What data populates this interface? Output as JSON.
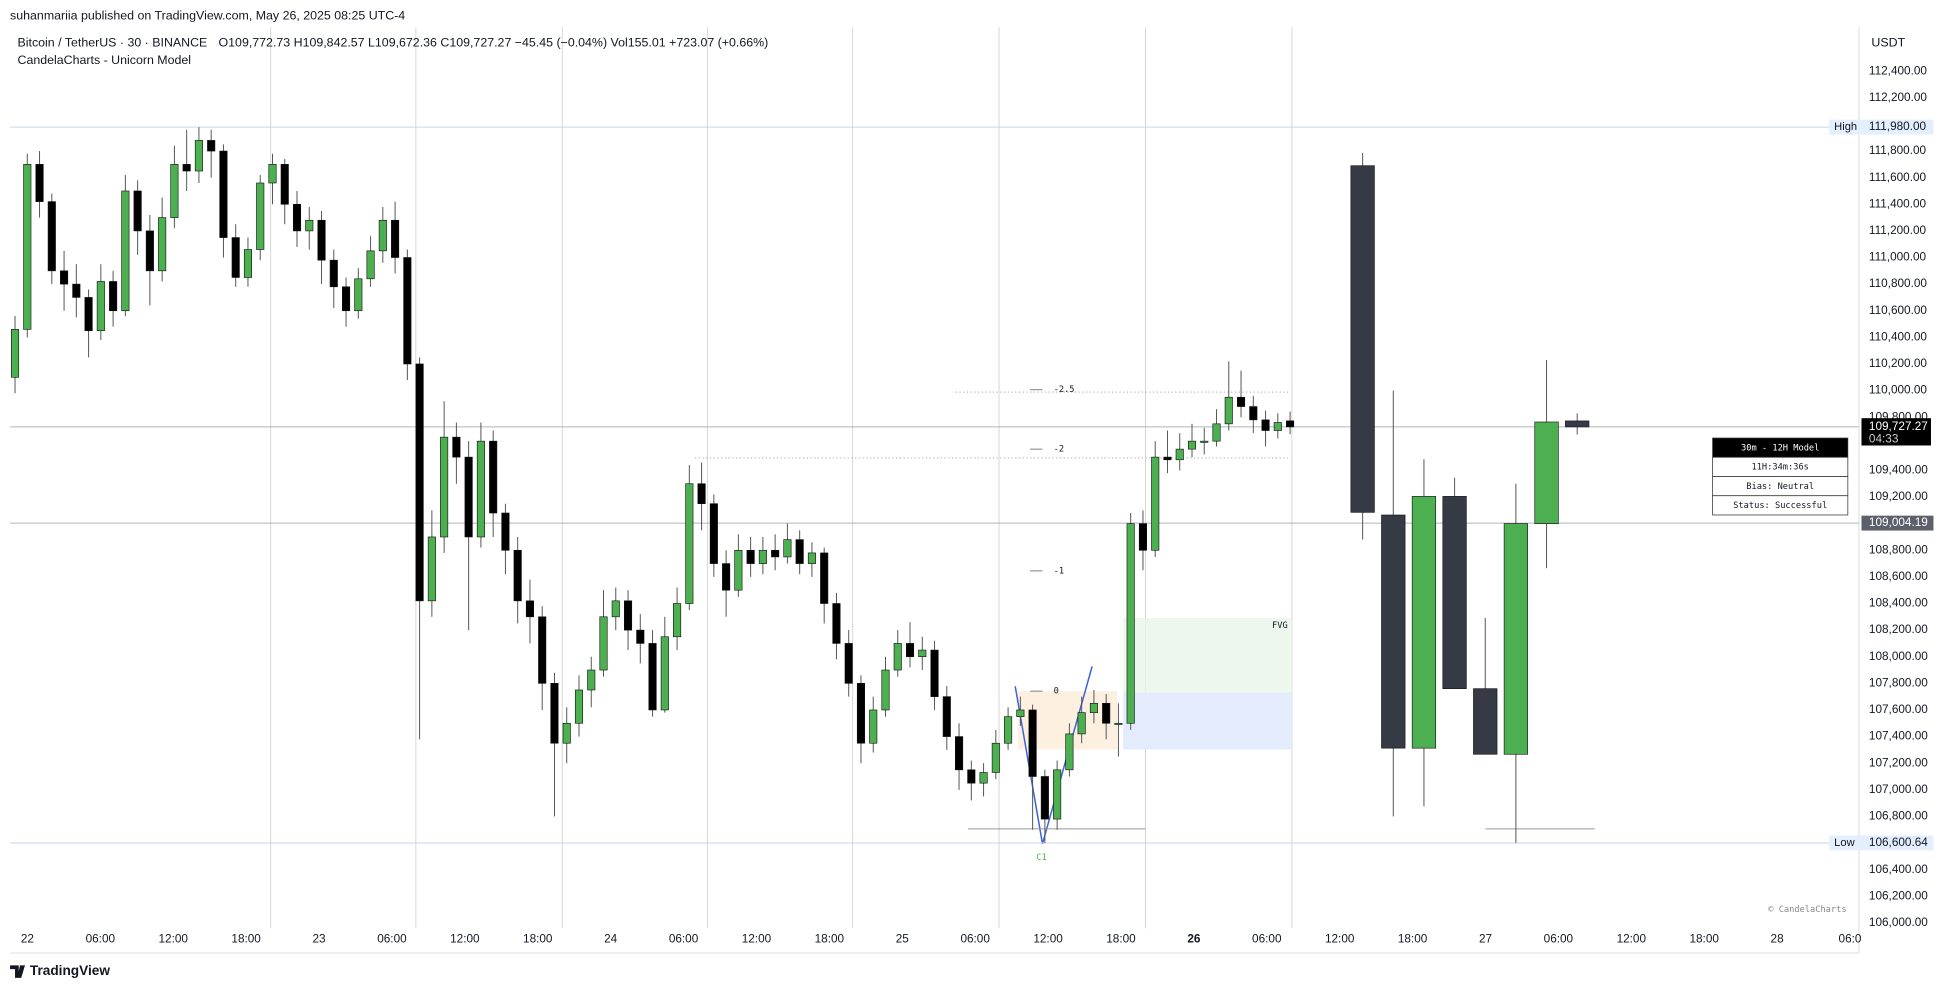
{
  "header": {
    "publisher": "suhanmariia published on TradingView.com, May 26, 2025 08:25 UTC-4",
    "brand": "TradingView"
  },
  "chart_data": {
    "type": "candlestick",
    "title": "Bitcoin / TetherUS · 30 · BINANCE",
    "ohlc_text": "O109,772.73  H109,842.57  L109,672.36  C109,727.27  −45.45 (−0.04%)  Vol155.01  +723.07 (+0.66%)",
    "indicator": "CandelaCharts - Unicorn Model",
    "currency": "USDT",
    "watermark": "© CandelaCharts",
    "bull_color": "#4caf50",
    "bear_color": "#000000",
    "htf_bear_color": "#363a45",
    "ylim": [
      105960,
      112730
    ],
    "yticks": [
      {
        "value": 112400,
        "label": "112,400.00"
      },
      {
        "value": 112200,
        "label": "112,200.00"
      },
      {
        "value": 111800,
        "label": "111,800.00"
      },
      {
        "value": 111600,
        "label": "111,600.00"
      },
      {
        "value": 111400,
        "label": "111,400.00"
      },
      {
        "value": 111200,
        "label": "111,200.00"
      },
      {
        "value": 111000,
        "label": "111,000.00"
      },
      {
        "value": 110800,
        "label": "110,800.00"
      },
      {
        "value": 110600,
        "label": "110,600.00"
      },
      {
        "value": 110400,
        "label": "110,400.00"
      },
      {
        "value": 110200,
        "label": "110,200.00"
      },
      {
        "value": 110000,
        "label": "110,000.00"
      },
      {
        "value": 109800,
        "label": "109,800.00"
      },
      {
        "value": 109400,
        "label": "109,400.00"
      },
      {
        "value": 109200,
        "label": "109,200.00"
      },
      {
        "value": 108800,
        "label": "108,800.00"
      },
      {
        "value": 108600,
        "label": "108,600.00"
      },
      {
        "value": 108400,
        "label": "108,400.00"
      },
      {
        "value": 108200,
        "label": "108,200.00"
      },
      {
        "value": 108000,
        "label": "108,000.00"
      },
      {
        "value": 107800,
        "label": "107,800.00"
      },
      {
        "value": 107600,
        "label": "107,600.00"
      },
      {
        "value": 107400,
        "label": "107,400.00"
      },
      {
        "value": 107200,
        "label": "107,200.00"
      },
      {
        "value": 107000,
        "label": "107,000.00"
      },
      {
        "value": 106800,
        "label": "106,800.00"
      },
      {
        "value": 106400,
        "label": "106,400.00"
      },
      {
        "value": 106200,
        "label": "106,200.00"
      },
      {
        "value": 106000,
        "label": "106,000.00"
      }
    ],
    "x_labels": [
      "22",
      "06:00",
      "12:00",
      "18:00",
      "23",
      "06:00",
      "12:00",
      "18:00",
      "24",
      "06:00",
      "12:00",
      "18:00",
      "25",
      "06:00",
      "12:00",
      "18:00",
      "26",
      "06:00",
      "12:00",
      "18:00",
      "27",
      "06:00",
      "12:00",
      "18:00",
      "28",
      "06:0"
    ],
    "open": [
      110100,
      110460,
      111700,
      111420,
      110900,
      110800,
      110700,
      110450,
      110820,
      110600,
      111500,
      111200,
      110900,
      111300,
      111700,
      111650,
      111880,
      111800,
      111150,
      110850,
      111060,
      111560,
      111700,
      111400,
      111200,
      111280,
      110980,
      110780,
      110600,
      110840,
      111050,
      111280,
      111000,
      110200,
      108420,
      108900,
      109650,
      109500,
      108900,
      109620,
      109080,
      108800,
      108420,
      108300,
      107800,
      107350,
      107500,
      107750,
      107900,
      108300,
      108420,
      108200,
      108100,
      107600,
      108150,
      108400,
      109300,
      109150,
      108700,
      108500,
      108800,
      108700,
      108800,
      108750,
      108880,
      108700,
      108780,
      108400,
      108100,
      107800,
      107350,
      107600,
      107900,
      108100,
      108000,
      108050,
      107700,
      107400,
      107150,
      107050,
      107130,
      107350,
      107550,
      107600,
      107100,
      106780,
      107150,
      107420,
      107580,
      107650,
      107500,
      107500,
      109000,
      108800,
      109500,
      109480,
      109560,
      109620,
      109620,
      109750,
      109950,
      109880,
      109780,
      109700,
      109772.73
    ],
    "high": [
      110560,
      111780,
      111800,
      111480,
      111050,
      110950,
      110760,
      110950,
      110900,
      111620,
      111580,
      111320,
      111450,
      111840,
      111960,
      111980,
      111960,
      111850,
      111250,
      111150,
      111620,
      111780,
      111740,
      111500,
      111380,
      111350,
      111060,
      110850,
      110920,
      111160,
      111380,
      111420,
      111060,
      110250,
      109100,
      109920,
      109760,
      109620,
      109760,
      109700,
      109150,
      108900,
      108580,
      108380,
      107880,
      107620,
      107860,
      108000,
      108500,
      108520,
      108500,
      108320,
      108200,
      108300,
      108520,
      109440,
      109460,
      109220,
      108800,
      108920,
      108900,
      108900,
      108920,
      109000,
      108950,
      108860,
      108820,
      108480,
      108200,
      107860,
      107700,
      108000,
      108200,
      108260,
      108150,
      108120,
      107780,
      107500,
      107220,
      107200,
      107450,
      107620,
      107700,
      107640,
      107150,
      107220,
      107500,
      107700,
      107750,
      107720,
      107650,
      109080,
      109100,
      109620,
      109700,
      109680,
      109750,
      109720,
      109860,
      110220,
      110150,
      109960,
      109850,
      109830,
      109842.57
    ],
    "low": [
      109980,
      110400,
      111300,
      110800,
      110600,
      110550,
      110250,
      110380,
      110480,
      110560,
      111020,
      110640,
      110820,
      111220,
      111500,
      111560,
      111600,
      111000,
      110780,
      110780,
      110980,
      111400,
      111250,
      111080,
      111060,
      110800,
      110620,
      110480,
      110540,
      110780,
      110960,
      110880,
      110080,
      107380,
      108300,
      108780,
      109300,
      108200,
      108820,
      108900,
      108620,
      108250,
      108100,
      107600,
      106800,
      107200,
      107400,
      107620,
      107850,
      108200,
      108050,
      107950,
      107550,
      107580,
      108050,
      108350,
      108950,
      108600,
      108300,
      108450,
      108600,
      108620,
      108650,
      108700,
      108620,
      108600,
      108250,
      107980,
      107700,
      107200,
      107280,
      107550,
      107850,
      107920,
      107900,
      107600,
      107300,
      107000,
      106920,
      106950,
      107080,
      107300,
      107480,
      106700,
      106600,
      106700,
      107100,
      107350,
      107500,
      107380,
      107250,
      107450,
      108650,
      108750,
      109380,
      109400,
      109500,
      109520,
      109580,
      109700,
      109800,
      109680,
      109580,
      109640,
      109672.36
    ],
    "close": [
      110460,
      111700,
      111420,
      110900,
      110800,
      110700,
      110450,
      110820,
      110600,
      111500,
      111200,
      110900,
      111300,
      111700,
      111650,
      111880,
      111800,
      111150,
      110850,
      111060,
      111560,
      111700,
      111400,
      111200,
      111280,
      110980,
      110780,
      110600,
      110840,
      111050,
      111280,
      111000,
      110200,
      108420,
      108900,
      109650,
      109500,
      108900,
      109620,
      109080,
      108800,
      108420,
      108300,
      107800,
      107350,
      107500,
      107750,
      107900,
      108300,
      108420,
      108200,
      108100,
      107600,
      108150,
      108400,
      109300,
      109150,
      108700,
      108500,
      108800,
      108700,
      108800,
      108750,
      108880,
      108700,
      108780,
      108400,
      108100,
      107800,
      107350,
      107600,
      107900,
      108100,
      108000,
      108050,
      107700,
      107400,
      107150,
      107050,
      107130,
      107350,
      107550,
      107600,
      107100,
      106780,
      107150,
      107420,
      107580,
      107650,
      107500,
      107500,
      109000,
      108800,
      109500,
      109480,
      109560,
      109620,
      109620,
      109750,
      109950,
      109880,
      109780,
      109700,
      109760,
      109727.27
    ],
    "htf": {
      "open": [
        111690,
        109065,
        107313,
        109205,
        107760,
        107267,
        109000,
        109772
      ],
      "high": [
        111785,
        110000,
        109484,
        109345,
        108292,
        109300,
        110230,
        109829
      ],
      "low": [
        108880,
        106800,
        106875,
        107760,
        107267,
        106600,
        108665,
        109670
      ],
      "close": [
        109085,
        107313,
        109205,
        107760,
        107267,
        109000,
        109764,
        109727
      ]
    },
    "price_levels": [
      {
        "label": "High",
        "value": 111980,
        "value_label": "111,980.00"
      },
      {
        "label": "Low",
        "value": 106600.64,
        "value_label": "106,600.64"
      }
    ],
    "last_price": {
      "value": 109727.27,
      "value_label": "109,727.27",
      "countdown": "04:33"
    },
    "mark_level": {
      "value": 109004.19,
      "value_label": "109,004.19"
    },
    "fib_labels": [
      "-2.5",
      "-2",
      "-1",
      "0"
    ],
    "fvg_label": "FVG",
    "c1_label": "C1",
    "panel": [
      "30m - 12H Model",
      "11H:34m:36s",
      "Bias: Neutral",
      "Status: Successful"
    ]
  }
}
